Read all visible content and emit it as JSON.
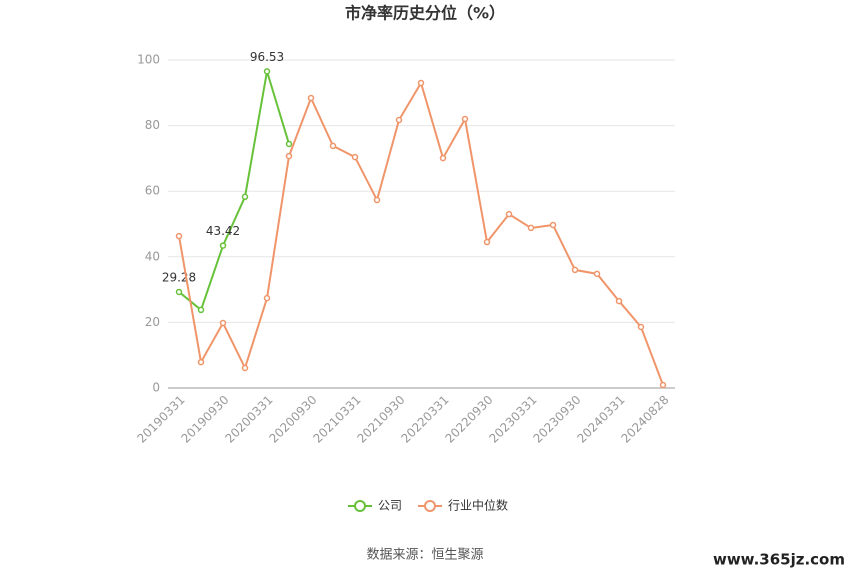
{
  "chart_data": {
    "type": "line",
    "title": "市净率历史分位（%）",
    "categories": [
      "20190331",
      null,
      "20190930",
      null,
      "20200331",
      null,
      "20200930",
      null,
      "20210331",
      null,
      "20210930",
      null,
      "20220331",
      null,
      "20220930",
      null,
      "20230331",
      null,
      "20230930",
      null,
      "20240331",
      null,
      "20240828"
    ],
    "series": [
      {
        "name": "公司",
        "color": "#67c23a",
        "values": [
          29.28,
          23.8,
          43.42,
          58.3,
          96.53,
          74.4,
          null,
          null,
          null,
          null,
          null,
          null,
          null,
          null,
          null,
          null,
          null,
          null,
          null,
          null,
          null,
          null,
          null
        ],
        "value_labels": [
          "29.28",
          null,
          "43.42",
          null,
          "96.53",
          null,
          null,
          null,
          null,
          null,
          null,
          null,
          null,
          null,
          null,
          null,
          null,
          null,
          null,
          null,
          null,
          null,
          null
        ]
      },
      {
        "name": "行业中位数",
        "color": "#f0956a",
        "values": [
          46.3,
          7.9,
          19.8,
          6.1,
          27.4,
          70.7,
          88.4,
          73.8,
          70.4,
          57.3,
          81.7,
          93.0,
          70.1,
          82.0,
          44.5,
          53.0,
          48.8,
          49.7,
          36.0,
          34.8,
          26.5,
          18.6,
          0.9
        ]
      }
    ],
    "ylim": [
      0,
      100
    ],
    "yticks": [
      0,
      20,
      40,
      60,
      80,
      100
    ],
    "grid": true,
    "legend": "bottom",
    "source": "数据来源：恒生聚源",
    "watermark": "www.365jz.com"
  }
}
